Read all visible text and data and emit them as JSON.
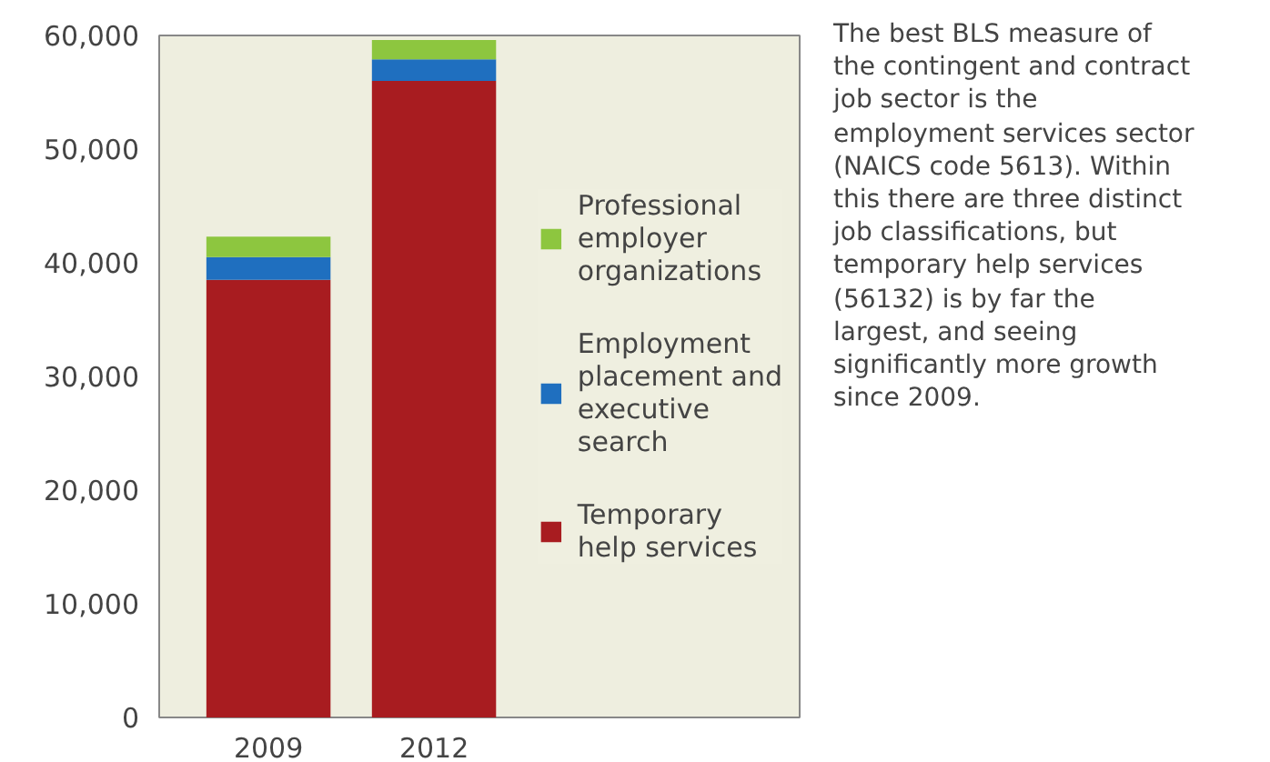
{
  "chart_data": {
    "type": "bar",
    "stacked": true,
    "categories": [
      "2009",
      "2012"
    ],
    "series": [
      {
        "name": "Temporary help services",
        "color": "#a81c20",
        "values": [
          38500,
          56000
        ]
      },
      {
        "name": "Employment placement and executive search",
        "color": "#1f6fbf",
        "values": [
          2000,
          1900
        ]
      },
      {
        "name": "Professional employer organizations",
        "color": "#8dc63f",
        "values": [
          1800,
          1700
        ]
      }
    ],
    "ylim": [
      0,
      60000
    ],
    "yticks": [
      0,
      {
        "value": 10000,
        "label": "10,000"
      },
      {
        "value": 20000,
        "label": "20,000"
      },
      {
        "value": 30000,
        "label": "30,000"
      },
      {
        "value": 40000,
        "label": "40,000"
      },
      {
        "value": 50000,
        "label": "50,000"
      },
      {
        "value": 60000,
        "label": "60,000"
      }
    ],
    "grid": false,
    "legend": "right",
    "annotations": [
      "The best BLS measure of the contingent and contract job sector is the employment services sector (NAICS code 5613). Within this there are three distinct job classifications, but temporary help services (56132) is by far the largest, and seeing significantly more growth since 2009."
    ]
  }
}
